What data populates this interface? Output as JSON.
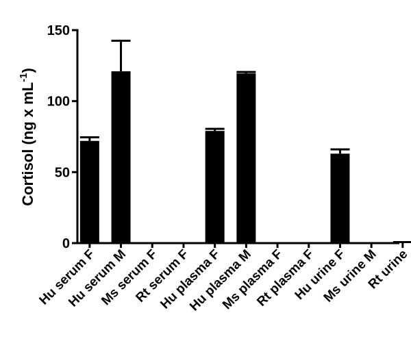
{
  "chart_data": {
    "type": "bar",
    "title": "",
    "xlabel": "",
    "ylabel": "Cortisol (ng x mL",
    "ylabel_superscript": "-1",
    "ylabel_suffix": ")",
    "ylim": [
      0,
      150
    ],
    "yticks": [
      0,
      50,
      100,
      150
    ],
    "grid": false,
    "categories": [
      "Hu serum F",
      "Hu serum M",
      "Ms serum F",
      "Rt serum F",
      "Hu plasma F",
      "Hu plasma M",
      "Ms plasma F",
      "Rt plasma F",
      "Hu urine F",
      "Ms urine M",
      "Rt urine"
    ],
    "values": [
      72,
      121,
      0,
      0,
      79,
      119.5,
      0,
      0,
      63,
      0,
      0.3
    ],
    "errors": [
      2.5,
      21.5,
      0,
      0,
      1.5,
      1,
      0,
      0,
      3,
      0,
      0.4
    ],
    "bar_color": "#000000"
  }
}
